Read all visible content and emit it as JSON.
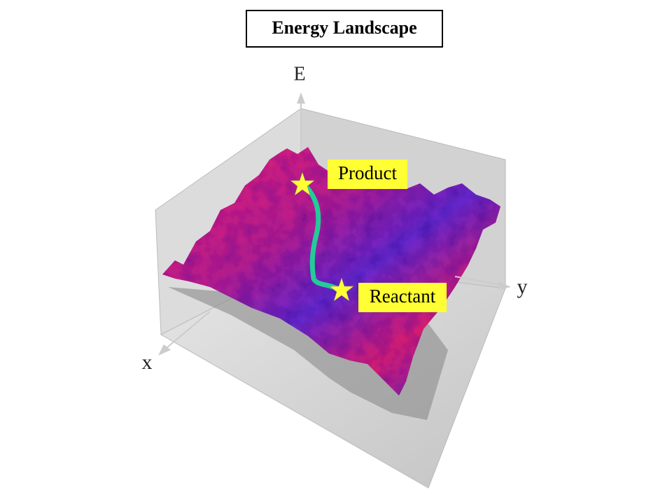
{
  "header": {
    "title": "Energy Landscape"
  },
  "axes": {
    "e": "E",
    "y": "y",
    "x": "x"
  },
  "labels": {
    "product": "Product",
    "reactant": "Reactant"
  }
}
